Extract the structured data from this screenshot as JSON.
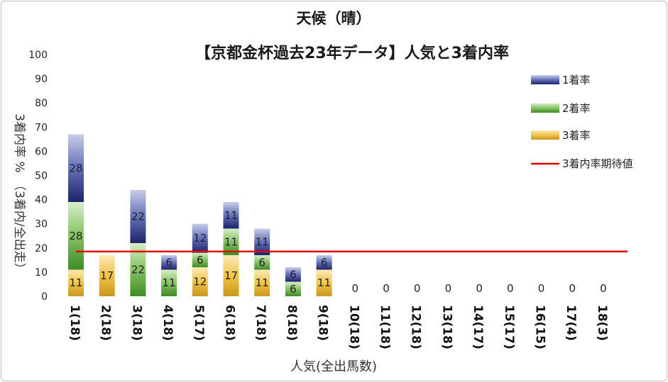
{
  "chart_data": {
    "type": "bar",
    "stacked": true,
    "title": "天候（晴）",
    "subtitle": "【京都金杯過去23年データ】人気と3着内率",
    "xlabel": "人気(全出馬数)",
    "ylabel": "3着内率 %　（3着内/全出走）",
    "ylim": [
      0,
      100
    ],
    "y_ticks": [
      0,
      10,
      20,
      30,
      40,
      50,
      60,
      70,
      80,
      90,
      100
    ],
    "grid": false,
    "legend_position": "right",
    "categories": [
      "1(18)",
      "2(18)",
      "3(18)",
      "4(18)",
      "5(17)",
      "6(18)",
      "7(18)",
      "8(18)",
      "9(18)",
      "10(18)",
      "11(18)",
      "12(18)",
      "13(18)",
      "14(17)",
      "15(17)",
      "16(15)",
      "17(4)",
      "18(3)"
    ],
    "series": [
      {
        "name": "3着率",
        "color": "#d9a520",
        "values": [
          11,
          17,
          0,
          0,
          12,
          17,
          11,
          0,
          11,
          0,
          0,
          0,
          0,
          0,
          0,
          0,
          0,
          0
        ]
      },
      {
        "name": "2着率",
        "color": "#4e9a32",
        "values": [
          28,
          0,
          22,
          11,
          6,
          11,
          6,
          6,
          0,
          0,
          0,
          0,
          0,
          0,
          0,
          0,
          0,
          0
        ]
      },
      {
        "name": "1着率",
        "color": "#2e3a8a",
        "values": [
          28,
          0,
          22,
          6,
          12,
          11,
          11,
          6,
          6,
          0,
          0,
          0,
          0,
          0,
          0,
          0,
          0,
          0
        ]
      }
    ],
    "reference_line": {
      "name": "3着内率期待値",
      "color": "#e00000",
      "value": 18.5
    }
  }
}
